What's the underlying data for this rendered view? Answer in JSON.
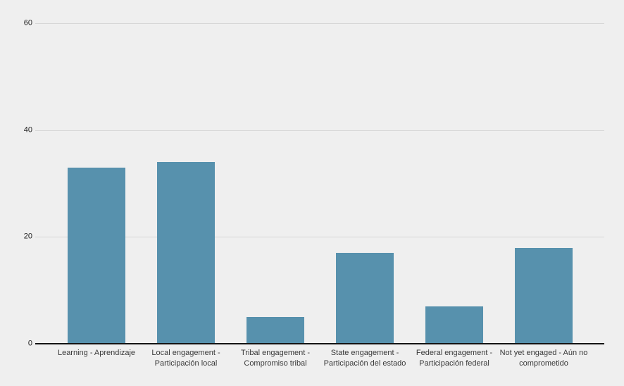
{
  "chart_data": {
    "type": "bar",
    "categories": [
      "Learning - Aprendizaje",
      "Local engagement - Participación local",
      "Tribal engagement - Compromiso tribal",
      "State engagement - Participación del estado",
      "Federal engagement - Participación federal",
      "Not yet engaged - Aún no comprometido"
    ],
    "values": [
      33,
      34,
      5,
      17,
      7,
      18
    ],
    "title": "",
    "xlabel": "",
    "ylabel": "",
    "ylim": [
      0,
      60
    ],
    "yticks": [
      0,
      20,
      40,
      60
    ],
    "grid": true,
    "legend": false,
    "colors": {
      "bar": "#5791ad",
      "background": "#efefef",
      "gridline": "#d6d6d6",
      "axis_line": "#141414",
      "tick_label": "#212121",
      "category_label": "#3a3a3a"
    }
  }
}
